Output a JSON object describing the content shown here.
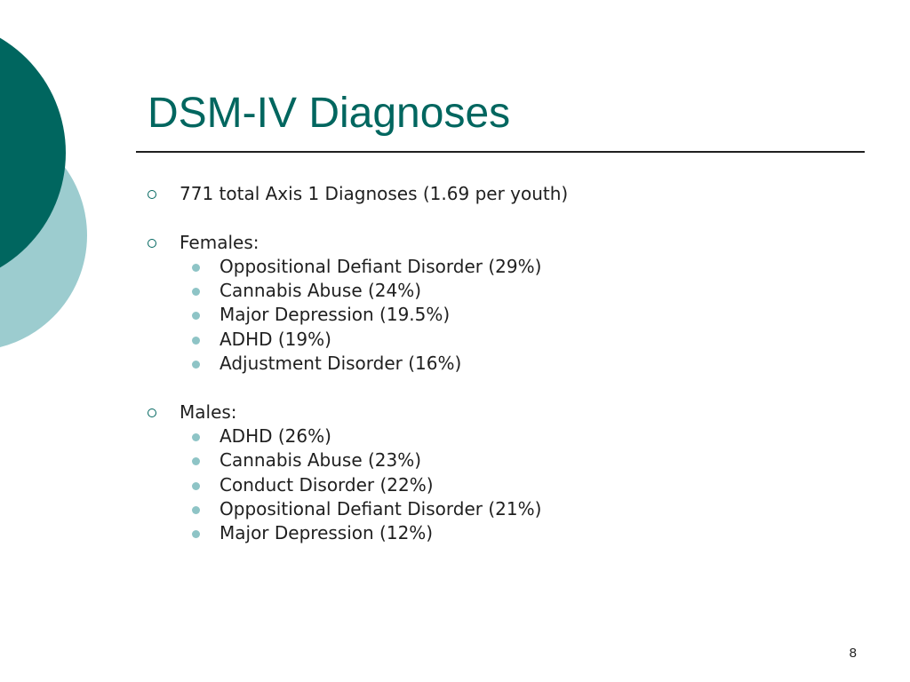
{
  "slide": {
    "title": "DSM-IV Diagnoses",
    "page_number": "8",
    "accent_color": "#00665f",
    "decor_light_color": "#9ccccf"
  },
  "summary": {
    "text": "771 total Axis 1 Diagnoses (1.69 per youth)",
    "icon": "hollow-circle-icon"
  },
  "females": {
    "label": "Females:",
    "icon": "hollow-circle-icon",
    "sub_icon": "filled-dot-icon",
    "items": [
      "Oppositional Defiant Disorder (29%)",
      "Cannabis Abuse (24%)",
      "Major Depression (19.5%)",
      "ADHD (19%)",
      "Adjustment Disorder (16%)"
    ]
  },
  "males": {
    "label": "Males:",
    "icon": "hollow-circle-icon",
    "sub_icon": "filled-dot-icon",
    "items": [
      "ADHD (26%)",
      "Cannabis Abuse (23%)",
      "Conduct Disorder (22%)",
      "Oppositional Defiant Disorder (21%)",
      "Major Depression (12%)"
    ]
  }
}
